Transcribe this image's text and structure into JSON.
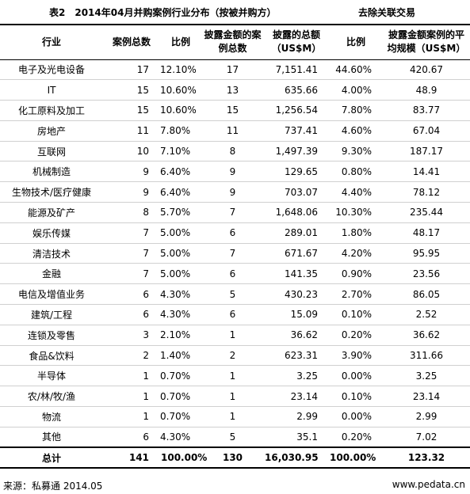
{
  "title": {
    "main": "表2　2014年04月并购案例行业分布（按被并购方）",
    "note": "去除关联交易"
  },
  "table": {
    "headers": [
      "行业",
      "案例总数",
      "比例",
      "披露金额的案例总数",
      "披露的总额（US$M）",
      "比例",
      "披露金额案例的平均规模（US$M）"
    ],
    "rows": [
      [
        "电子及光电设备",
        "17",
        "12.10%",
        "17",
        "7,151.41",
        "44.60%",
        "420.67"
      ],
      [
        "IT",
        "15",
        "10.60%",
        "13",
        "635.66",
        "4.00%",
        "48.9"
      ],
      [
        "化工原料及加工",
        "15",
        "10.60%",
        "15",
        "1,256.54",
        "7.80%",
        "83.77"
      ],
      [
        "房地产",
        "11",
        "7.80%",
        "11",
        "737.41",
        "4.60%",
        "67.04"
      ],
      [
        "互联网",
        "10",
        "7.10%",
        "8",
        "1,497.39",
        "9.30%",
        "187.17"
      ],
      [
        "机械制造",
        "9",
        "6.40%",
        "9",
        "129.65",
        "0.80%",
        "14.41"
      ],
      [
        "生物技术/医疗健康",
        "9",
        "6.40%",
        "9",
        "703.07",
        "4.40%",
        "78.12"
      ],
      [
        "能源及矿产",
        "8",
        "5.70%",
        "7",
        "1,648.06",
        "10.30%",
        "235.44"
      ],
      [
        "娱乐传媒",
        "7",
        "5.00%",
        "6",
        "289.01",
        "1.80%",
        "48.17"
      ],
      [
        "清洁技术",
        "7",
        "5.00%",
        "7",
        "671.67",
        "4.20%",
        "95.95"
      ],
      [
        "金融",
        "7",
        "5.00%",
        "6",
        "141.35",
        "0.90%",
        "23.56"
      ],
      [
        "电信及增值业务",
        "6",
        "4.30%",
        "5",
        "430.23",
        "2.70%",
        "86.05"
      ],
      [
        "建筑/工程",
        "6",
        "4.30%",
        "6",
        "15.09",
        "0.10%",
        "2.52"
      ],
      [
        "连锁及零售",
        "3",
        "2.10%",
        "1",
        "36.62",
        "0.20%",
        "36.62"
      ],
      [
        "食品&饮料",
        "2",
        "1.40%",
        "2",
        "623.31",
        "3.90%",
        "311.66"
      ],
      [
        "半导体",
        "1",
        "0.70%",
        "1",
        "3.25",
        "0.00%",
        "3.25"
      ],
      [
        "农/林/牧/渔",
        "1",
        "0.70%",
        "1",
        "23.14",
        "0.10%",
        "23.14"
      ],
      [
        "物流",
        "1",
        "0.70%",
        "1",
        "2.99",
        "0.00%",
        "2.99"
      ],
      [
        "其他",
        "6",
        "4.30%",
        "5",
        "35.1",
        "0.20%",
        "7.02"
      ]
    ],
    "total": [
      "总计",
      "141",
      "100.00%",
      "130",
      "16,030.95",
      "100.00%",
      "123.32"
    ]
  },
  "footer": {
    "source": "来源：私募通 2014.05",
    "site": "www.pedata.cn"
  }
}
